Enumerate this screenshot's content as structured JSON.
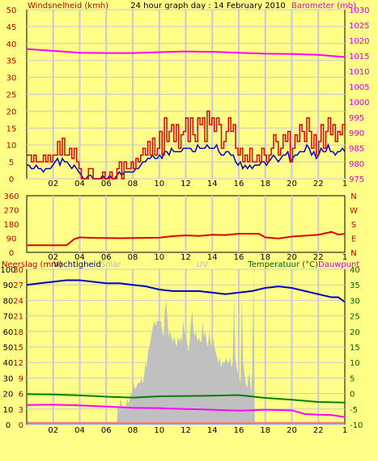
{
  "header": {
    "left_label": "Windsnelheid (kmh)",
    "title": "24 hour graph day : 14 February 2010",
    "right_label": "Barometer (mb)"
  },
  "colors": {
    "background": "#ffff88",
    "plot_background": "#ffff88",
    "grid": "#c8c8d8",
    "wind": "#e00000",
    "wind_avg": "#0000c0",
    "barometer": "#ff00ff",
    "direction": "#e00000",
    "humidity": "#0000c0",
    "temperature": "#008000",
    "dewpoint": "#ff00ff",
    "solar": "#c0c0c0",
    "rain": "#ff8080",
    "uv": "#8080ff",
    "label_red": "#c00000",
    "label_magenta": "#e000e0",
    "label_green": "#006000",
    "label_grey": "#b8b8b8"
  },
  "chart_data": [
    {
      "type": "line",
      "name": "wind-barometer",
      "x_tick_labels": [
        "02",
        "04",
        "06",
        "08",
        "10",
        "12",
        "14",
        "16",
        "18",
        "20",
        "22",
        "1"
      ],
      "ylabel": "Windsnelheid (kmh)",
      "ylim": [
        0,
        50
      ],
      "y_ticks": [
        0,
        5,
        10,
        15,
        20,
        25,
        30,
        35,
        40,
        45,
        50
      ],
      "y2label": "Barometer (mb)",
      "y2lim": [
        975,
        1030
      ],
      "y2_ticks": [
        975,
        980,
        985,
        990,
        995,
        1000,
        1005,
        1010,
        1015,
        1020,
        1025,
        1030
      ],
      "series": [
        {
          "key": "gust",
          "axis": "left",
          "values": [
            7,
            7,
            5,
            7,
            5,
            5,
            5,
            7,
            5,
            7,
            5,
            7,
            7,
            11,
            7,
            12,
            7,
            7,
            9,
            6,
            9,
            5,
            3,
            0,
            0,
            0,
            3,
            3,
            0,
            0,
            0,
            0,
            2,
            0,
            0,
            2,
            0,
            0,
            3,
            5,
            0,
            5,
            3,
            3,
            5,
            3,
            6,
            5,
            7,
            9,
            7,
            11,
            7,
            12,
            7,
            9,
            14,
            7,
            18,
            11,
            14,
            16,
            11,
            16,
            9,
            13,
            14,
            18,
            11,
            18,
            13,
            11,
            18,
            16,
            18,
            11,
            20,
            16,
            18,
            14,
            18,
            16,
            9,
            11,
            14,
            18,
            14,
            16,
            9,
            7,
            9,
            5,
            7,
            5,
            9,
            5,
            5,
            7,
            5,
            9,
            7,
            5,
            7,
            9,
            13,
            11,
            7,
            9,
            13,
            11,
            14,
            5,
            9,
            13,
            11,
            16,
            14,
            11,
            18,
            14,
            9,
            13,
            7,
            11,
            16,
            9,
            14,
            18,
            13,
            16,
            11,
            14,
            13,
            16,
            14
          ]
        },
        {
          "key": "average",
          "axis": "left",
          "values": [
            4,
            4,
            3,
            3,
            4,
            3,
            3,
            2,
            3,
            3,
            3,
            4,
            5,
            6,
            4,
            6,
            5,
            5,
            4,
            3,
            4,
            3,
            2,
            1,
            0,
            0,
            1,
            1,
            0,
            0,
            0,
            0,
            1,
            0,
            0,
            1,
            0,
            0,
            1,
            2,
            1,
            2,
            2,
            2,
            2,
            2,
            3,
            3,
            4,
            5,
            5,
            6,
            6,
            7,
            6,
            6,
            7,
            6,
            8,
            8,
            7,
            9,
            8,
            8,
            8,
            8,
            9,
            9,
            9,
            9,
            8,
            8,
            10,
            9,
            9,
            9,
            10,
            9,
            9,
            9,
            10,
            8,
            7,
            7,
            8,
            8,
            7,
            7,
            5,
            4,
            5,
            3,
            4,
            3,
            4,
            3,
            4,
            4,
            4,
            5,
            5,
            4,
            5,
            6,
            7,
            6,
            5,
            6,
            7,
            7,
            8,
            5,
            6,
            7,
            7,
            8,
            8,
            8,
            10,
            9,
            7,
            8,
            6,
            7,
            9,
            8,
            8,
            10,
            8,
            8,
            7,
            8,
            8,
            9,
            8
          ]
        },
        {
          "key": "barometer",
          "axis": "right",
          "points": [
            [
              0,
              1017.2
            ],
            [
              2,
              1016.6
            ],
            [
              4,
              1016.0
            ],
            [
              6,
              1015.9
            ],
            [
              8,
              1015.9
            ],
            [
              10,
              1016.2
            ],
            [
              12,
              1016.4
            ],
            [
              14,
              1016.3
            ],
            [
              16,
              1016.0
            ],
            [
              18,
              1015.7
            ],
            [
              20,
              1015.6
            ],
            [
              22,
              1015.3
            ],
            [
              24,
              1014.6
            ]
          ]
        }
      ]
    },
    {
      "type": "line",
      "name": "wind-direction",
      "y_ticks": [
        0,
        90,
        180,
        270,
        360
      ],
      "ylim": [
        0,
        360
      ],
      "right_letters": [
        "N",
        "W",
        "S",
        "E",
        "N"
      ],
      "x_tick_labels": [
        "02",
        "04",
        "06",
        "08",
        "10",
        "12",
        "14",
        "16",
        "18",
        "20",
        "22",
        "1"
      ],
      "series": [
        {
          "key": "direction",
          "points": [
            [
              0,
              45
            ],
            [
              3,
              45
            ],
            [
              3.6,
              85
            ],
            [
              4,
              95
            ],
            [
              5,
              92
            ],
            [
              7,
              90
            ],
            [
              10,
              93
            ],
            [
              11,
              103
            ],
            [
              12,
              108
            ],
            [
              13,
              104
            ],
            [
              14,
              112
            ],
            [
              15,
              110
            ],
            [
              16,
              118
            ],
            [
              17.5,
              118
            ],
            [
              18,
              95
            ],
            [
              19,
              88
            ],
            [
              20,
              100
            ],
            [
              21,
              106
            ],
            [
              22,
              112
            ],
            [
              23,
              130
            ],
            [
              23.5,
              113
            ],
            [
              24,
              118
            ]
          ]
        }
      ]
    },
    {
      "type": "area",
      "name": "humidity-temperature",
      "legend_left": [
        "Neerslag (mm)",
        "Vochtigheid",
        "Solar"
      ],
      "legend_center": "UV",
      "legend_right": [
        "Temperatuur (°C)",
        "Dauwpunt"
      ],
      "rain_ticks": [
        0,
        3,
        6,
        9,
        12,
        15,
        18,
        21,
        24,
        27,
        30
      ],
      "humidity_ticks": [
        0,
        10,
        20,
        30,
        40,
        50,
        60,
        70,
        80,
        90,
        100
      ],
      "ylim_rain": [
        0,
        30
      ],
      "ylim_humidity": [
        0,
        100
      ],
      "temp_ticks": [
        -10,
        -5,
        0,
        5,
        10,
        15,
        20,
        25,
        30,
        35,
        40
      ],
      "ylim_temp": [
        -10,
        40
      ],
      "x_tick_labels": [
        "02",
        "04",
        "06",
        "08",
        "10",
        "12",
        "14",
        "16",
        "18",
        "20",
        "22",
        "1"
      ],
      "series": [
        {
          "key": "humidity",
          "points": [
            [
              0,
              90
            ],
            [
              1,
              91
            ],
            [
              2,
              92
            ],
            [
              3,
              93
            ],
            [
              4,
              93
            ],
            [
              5,
              92
            ],
            [
              6,
              91
            ],
            [
              7,
              91
            ],
            [
              8,
              90
            ],
            [
              9,
              89
            ],
            [
              10,
              87
            ],
            [
              11,
              86
            ],
            [
              12,
              86
            ],
            [
              13,
              86
            ],
            [
              14,
              85
            ],
            [
              15,
              84
            ],
            [
              16,
              85
            ],
            [
              17,
              86
            ],
            [
              18,
              88
            ],
            [
              19,
              89
            ],
            [
              20,
              88
            ],
            [
              21,
              86
            ],
            [
              22,
              84
            ],
            [
              23,
              82
            ],
            [
              23.5,
              82
            ],
            [
              24,
              79
            ]
          ]
        },
        {
          "key": "temperature",
          "points": [
            [
              0,
              -0.2
            ],
            [
              2,
              -0.3
            ],
            [
              4,
              -0.6
            ],
            [
              6,
              -1.0
            ],
            [
              8,
              -1.3
            ],
            [
              10,
              -0.9
            ],
            [
              12,
              -0.8
            ],
            [
              14,
              -0.7
            ],
            [
              16,
              -0.5
            ],
            [
              18,
              -1.4
            ],
            [
              20,
              -2.0
            ],
            [
              22,
              -2.7
            ],
            [
              24,
              -2.9
            ]
          ]
        },
        {
          "key": "dewpoint",
          "points": [
            [
              0,
              -3.7
            ],
            [
              2,
              -3.6
            ],
            [
              4,
              -3.8
            ],
            [
              6,
              -4.2
            ],
            [
              8,
              -4.6
            ],
            [
              10,
              -4.7
            ],
            [
              12,
              -5.0
            ],
            [
              14,
              -5.2
            ],
            [
              16,
              -5.5
            ],
            [
              18,
              -5.2
            ],
            [
              20,
              -5.4
            ],
            [
              21,
              -6.6
            ],
            [
              22,
              -6.8
            ],
            [
              23,
              -6.9
            ],
            [
              24,
              -7.6
            ]
          ]
        },
        {
          "key": "solar",
          "unit": "rain-scale",
          "values": [
            0,
            0,
            0,
            0,
            0,
            0,
            0,
            0,
            0,
            0,
            0,
            0,
            0,
            0,
            0,
            0,
            0,
            0,
            0,
            0,
            0,
            0,
            0,
            0,
            0,
            0,
            0,
            0,
            0,
            0,
            0,
            0,
            0,
            0,
            0,
            0,
            0,
            0,
            0,
            0,
            0,
            0,
            0,
            0,
            0,
            0,
            0,
            0,
            0,
            0,
            0,
            0,
            0,
            0,
            0,
            0,
            0,
            0,
            0,
            0,
            0,
            0,
            0,
            0,
            0,
            0,
            0,
            0,
            0,
            0,
            4,
            3,
            5,
            4,
            3,
            4,
            3,
            5,
            4,
            5,
            6,
            6,
            8,
            7,
            7,
            8,
            8,
            8,
            9,
            8,
            9,
            12,
            11,
            14,
            15,
            16,
            18,
            19,
            20,
            19,
            20,
            20,
            20,
            20,
            18,
            17,
            22,
            24,
            20,
            17,
            18,
            17,
            16,
            17,
            16,
            15,
            17,
            16,
            17,
            16,
            20,
            18,
            17,
            16,
            14,
            16,
            20,
            22,
            18,
            17,
            18,
            16,
            17,
            16,
            16,
            20,
            17,
            18,
            16,
            15,
            18,
            16,
            15,
            17,
            15,
            14,
            13,
            12,
            13,
            11,
            12,
            12,
            12,
            13,
            12,
            12,
            13,
            11,
            12,
            25,
            13,
            11,
            10,
            9,
            8,
            25,
            12,
            10,
            8,
            7,
            9,
            10,
            6,
            10,
            30,
            0,
            0,
            0,
            0,
            0,
            0,
            0,
            0,
            0,
            0,
            0,
            0,
            0,
            0,
            0,
            0,
            0,
            0,
            0,
            0,
            0,
            0,
            0,
            0,
            0,
            0,
            0,
            0,
            0,
            0,
            0,
            0,
            0,
            0,
            0,
            0,
            0,
            0,
            0,
            0,
            0,
            0,
            0,
            0,
            0,
            0,
            0,
            0,
            0,
            0,
            0,
            0,
            0,
            0,
            0,
            0,
            0,
            0,
            0,
            0,
            0,
            0,
            0,
            0,
            0,
            0,
            0,
            0,
            0,
            0
          ]
        },
        {
          "key": "rain",
          "values": [
            0.2
          ]
        },
        {
          "key": "uv",
          "values": [
            0
          ]
        }
      ]
    }
  ]
}
